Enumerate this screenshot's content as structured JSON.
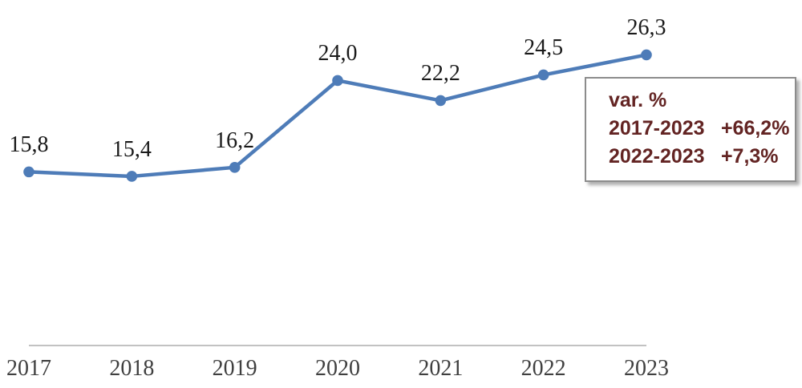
{
  "chart_data": {
    "type": "line",
    "categories": [
      "2017",
      "2018",
      "2019",
      "2020",
      "2021",
      "2022",
      "2023"
    ],
    "values": [
      15.8,
      15.4,
      16.2,
      24.0,
      22.2,
      24.5,
      26.3
    ],
    "value_labels": [
      "15,8",
      "15,4",
      "16,2",
      "24,0",
      "22,2",
      "24,5",
      "26,3"
    ],
    "title": "",
    "xlabel": "",
    "ylabel": "",
    "ylim": [
      0,
      31
    ],
    "grid": false,
    "legend": "none",
    "marker": "circle",
    "series_color": "#4E7CB8",
    "axis_color": "#aeaeae",
    "data_label_color": "#1a1a1a",
    "tick_label_color": "#3f3f3f"
  },
  "annotation": {
    "title": "var. %",
    "rows": [
      {
        "range": "2017-2023",
        "value": "+66,2%"
      },
      {
        "range": "2022-2023",
        "value": "+7,3%"
      }
    ],
    "text_color": "#632423",
    "border_color": "#8c8c8c"
  }
}
